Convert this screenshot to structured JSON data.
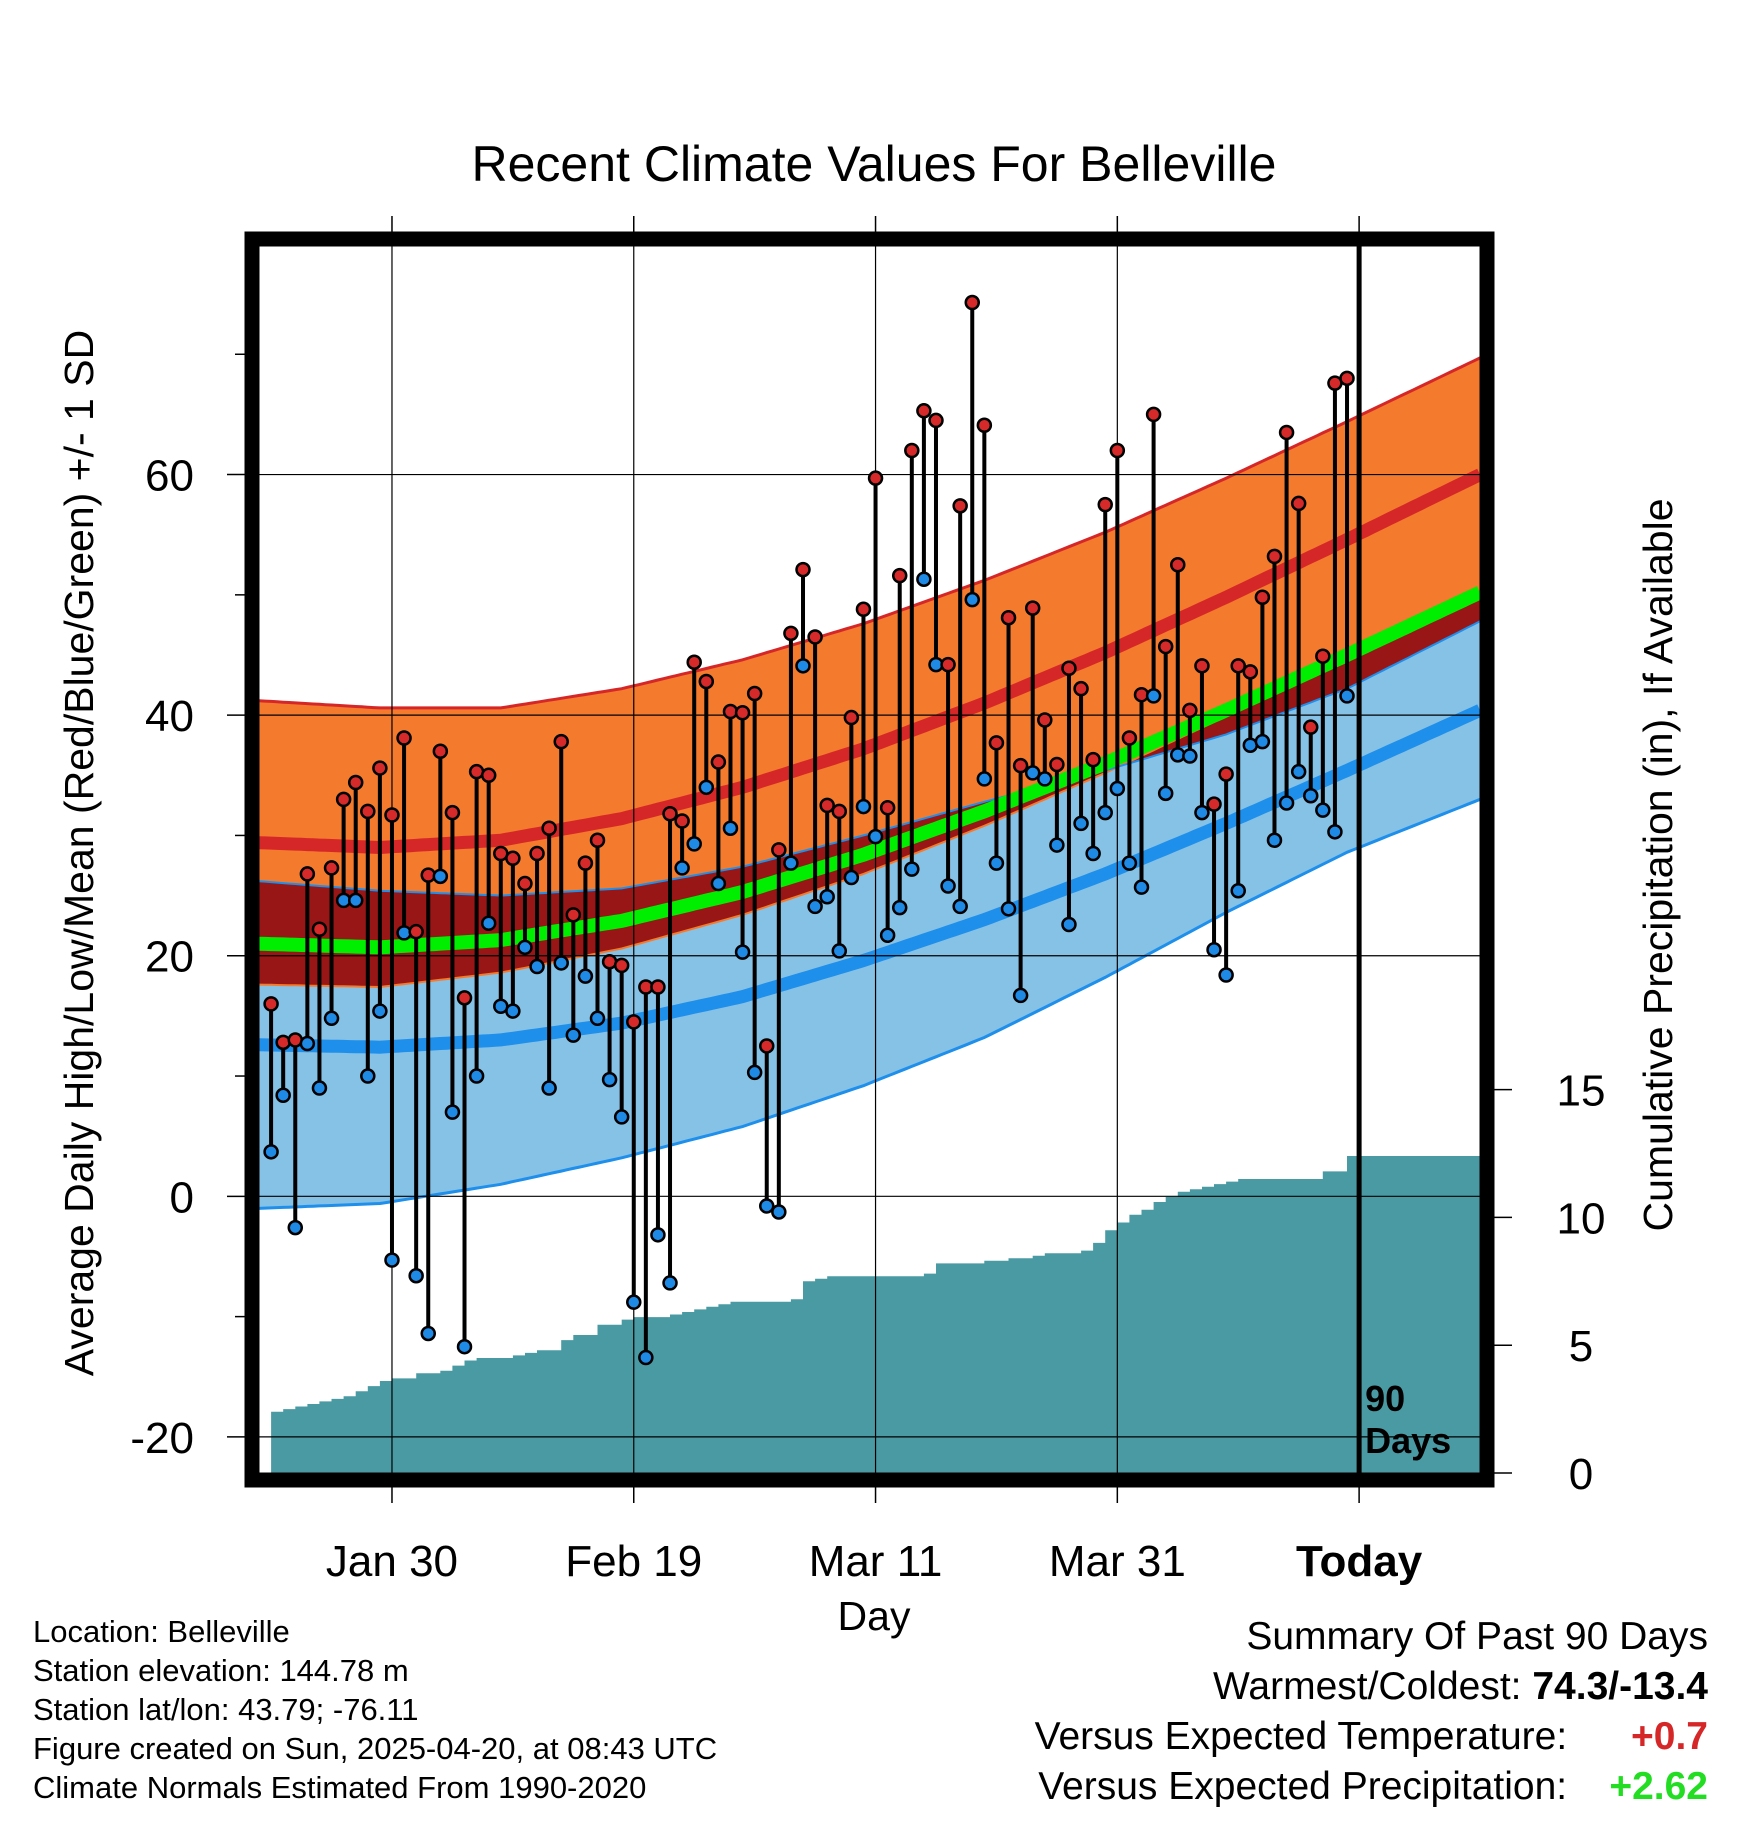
{
  "chart_data": {
    "type": "line",
    "title": "Recent Climate Values For Belleville",
    "xlabel": "Day",
    "ylabel": "Average Daily High/Low/Mean (Red/Blue/Green) +/- 1 SD",
    "y2label": "Cumulative Precipitation (in), If Available",
    "x_tick_labels": [
      "Jan 30",
      "Feb 19",
      "Mar 11",
      "Mar 31",
      "Today"
    ],
    "x_tick_days": [
      11,
      31,
      51,
      71,
      91
    ],
    "x_range_days": [
      0,
      101
    ],
    "ylim": [
      -23,
      79
    ],
    "y_ticks": [
      -20,
      0,
      20,
      40,
      60
    ],
    "y2lim": [
      0,
      48
    ],
    "y2_ticks": [
      0,
      5,
      10,
      15
    ],
    "today_label": "90\nDays",
    "today_label_lines": [
      "90",
      "Days"
    ],
    "colors": {
      "high_band": "#f47a2e",
      "high_mean": "#d62728",
      "overlap_band": "#981616",
      "mean_line": "#00ee00",
      "low_band": "#86c1e6",
      "low_mean": "#1e8fea",
      "precip": "#4a9aa4",
      "high_marker": "#d62a2a",
      "low_marker": "#1e8ae6"
    },
    "normals": {
      "days": [
        0,
        10,
        20,
        30,
        40,
        50,
        60,
        70,
        80,
        90,
        101
      ],
      "high_mean": [
        29.4,
        29.0,
        29.6,
        31.4,
        34.0,
        37.2,
        41.0,
        45.2,
        49.8,
        54.6,
        60.0
      ],
      "high_sd": [
        11.8,
        11.6,
        11.0,
        10.8,
        10.6,
        10.4,
        10.2,
        10.0,
        9.9,
        9.8,
        9.7
      ],
      "low_mean": [
        12.6,
        12.4,
        13.0,
        14.4,
        16.6,
        19.6,
        23.0,
        26.8,
        31.0,
        35.4,
        40.4
      ],
      "low_sd": [
        13.6,
        13.0,
        12.0,
        11.2,
        10.8,
        10.4,
        9.8,
        8.6,
        7.4,
        6.8,
        7.4
      ],
      "mean": [
        21.0,
        20.7,
        21.3,
        22.9,
        25.3,
        28.4,
        32.0,
        36.0,
        40.4,
        45.0,
        50.2
      ]
    },
    "series": [
      {
        "name": "High",
        "days": [
          1,
          2,
          3,
          4,
          5,
          6,
          7,
          8,
          9,
          10,
          11,
          12,
          13,
          14,
          15,
          16,
          17,
          18,
          19,
          20,
          21,
          22,
          23,
          24,
          25,
          26,
          27,
          28,
          29,
          30,
          31,
          32,
          33,
          34,
          35,
          36,
          37,
          38,
          39,
          40,
          41,
          42,
          43,
          44,
          45,
          46,
          47,
          48,
          49,
          50,
          51,
          52,
          53,
          54,
          55,
          56,
          57,
          58,
          59,
          60,
          61,
          62,
          63,
          64,
          65,
          66,
          67,
          68,
          69,
          70,
          71,
          72,
          73,
          74,
          75,
          76,
          77,
          78,
          79,
          80,
          81,
          82,
          83,
          84,
          85,
          86,
          87,
          88,
          89,
          90
        ],
        "values": [
          16.0,
          12.8,
          13.0,
          26.8,
          22.2,
          27.3,
          33.0,
          34.4,
          32.0,
          35.6,
          31.7,
          38.1,
          22.0,
          26.7,
          37.0,
          31.9,
          16.5,
          35.3,
          35.0,
          28.5,
          28.1,
          26.0,
          28.5,
          30.6,
          37.8,
          23.4,
          27.7,
          29.6,
          19.5,
          19.2,
          14.5,
          17.4,
          17.4,
          31.8,
          31.2,
          44.4,
          42.8,
          36.1,
          40.3,
          40.2,
          41.8,
          12.5,
          28.8,
          46.8,
          52.1,
          46.5,
          32.5,
          32.0,
          39.8,
          48.8,
          59.7,
          32.3,
          51.6,
          62.0,
          65.3,
          64.5,
          44.2,
          57.4,
          74.3,
          64.1,
          37.7,
          48.1,
          35.8,
          48.9,
          39.6,
          35.9,
          43.9,
          42.2,
          36.3,
          57.5,
          62.0,
          38.1,
          41.7,
          65.0,
          45.7,
          52.5,
          40.4,
          44.1,
          32.6,
          35.1,
          44.1,
          43.6,
          49.8,
          53.2,
          63.5,
          57.6,
          39.0,
          44.9,
          67.6,
          68.0
        ]
      },
      {
        "name": "Low",
        "days": [
          1,
          2,
          3,
          4,
          5,
          6,
          7,
          8,
          9,
          10,
          11,
          12,
          13,
          14,
          15,
          16,
          17,
          18,
          19,
          20,
          21,
          22,
          23,
          24,
          25,
          26,
          27,
          28,
          29,
          30,
          31,
          32,
          33,
          34,
          35,
          36,
          37,
          38,
          39,
          40,
          41,
          42,
          43,
          44,
          45,
          46,
          47,
          48,
          49,
          50,
          51,
          52,
          53,
          54,
          55,
          56,
          57,
          58,
          59,
          60,
          61,
          62,
          63,
          64,
          65,
          66,
          67,
          68,
          69,
          70,
          71,
          72,
          73,
          74,
          75,
          76,
          77,
          78,
          79,
          80,
          81,
          82,
          83,
          84,
          85,
          86,
          87,
          88,
          89,
          90
        ],
        "values": [
          3.7,
          8.4,
          -2.6,
          12.7,
          9.0,
          14.8,
          24.6,
          24.6,
          10.0,
          15.4,
          -5.3,
          21.9,
          -6.6,
          -11.4,
          26.6,
          7.0,
          -12.5,
          10.0,
          22.7,
          15.8,
          15.4,
          20.7,
          19.1,
          9.0,
          19.4,
          13.4,
          18.3,
          14.8,
          9.7,
          6.6,
          -8.8,
          -13.4,
          -3.2,
          -7.2,
          27.3,
          29.3,
          34.0,
          26.0,
          30.6,
          20.3,
          10.3,
          -0.8,
          -1.3,
          27.7,
          44.1,
          24.1,
          24.9,
          20.4,
          26.5,
          32.4,
          29.9,
          21.7,
          24.0,
          27.2,
          51.3,
          44.2,
          25.8,
          24.1,
          49.6,
          34.7,
          27.7,
          23.9,
          16.7,
          35.2,
          34.7,
          29.2,
          22.6,
          31.0,
          28.5,
          31.9,
          33.9,
          27.7,
          25.7,
          41.6,
          33.5,
          36.7,
          36.6,
          31.9,
          20.5,
          18.4,
          25.4,
          37.5,
          37.8,
          29.6,
          32.7,
          35.3,
          33.3,
          32.1,
          30.3,
          41.6
        ]
      },
      {
        "name": "Cumulative Precipitation",
        "days": [
          0,
          1,
          2,
          3,
          4,
          5,
          6,
          7,
          8,
          9,
          10,
          11,
          12,
          13,
          14,
          15,
          16,
          17,
          18,
          19,
          20,
          21,
          22,
          23,
          24,
          25,
          26,
          27,
          28,
          29,
          30,
          31,
          32,
          33,
          34,
          35,
          36,
          37,
          38,
          39,
          40,
          41,
          42,
          43,
          44,
          45,
          46,
          47,
          48,
          49,
          50,
          51,
          52,
          53,
          54,
          55,
          56,
          57,
          58,
          59,
          60,
          61,
          62,
          63,
          64,
          65,
          66,
          67,
          68,
          69,
          70,
          71,
          72,
          73,
          74,
          75,
          76,
          77,
          78,
          79,
          80,
          81,
          82,
          83,
          84,
          85,
          86,
          87,
          88,
          89,
          90,
          91,
          101
        ],
        "values": [
          0,
          2.4,
          2.5,
          2.6,
          2.7,
          2.8,
          2.9,
          3.0,
          3.2,
          3.4,
          3.6,
          3.7,
          3.7,
          3.9,
          3.9,
          4.0,
          4.2,
          4.4,
          4.5,
          4.5,
          4.5,
          4.6,
          4.7,
          4.8,
          4.8,
          5.2,
          5.4,
          5.4,
          5.8,
          5.8,
          6.0,
          6.1,
          6.1,
          6.1,
          6.2,
          6.3,
          6.4,
          6.5,
          6.6,
          6.7,
          6.7,
          6.7,
          6.7,
          6.7,
          6.8,
          7.5,
          7.6,
          7.7,
          7.7,
          7.7,
          7.7,
          7.7,
          7.7,
          7.7,
          7.7,
          7.8,
          8.2,
          8.2,
          8.2,
          8.2,
          8.3,
          8.3,
          8.4,
          8.4,
          8.5,
          8.6,
          8.6,
          8.6,
          8.7,
          9.0,
          9.5,
          9.8,
          10.1,
          10.3,
          10.6,
          10.8,
          11.0,
          11.1,
          11.2,
          11.3,
          11.4,
          11.5,
          11.5,
          11.5,
          11.5,
          11.5,
          11.5,
          11.5,
          11.8,
          11.8,
          12.4,
          12.4,
          12.4
        ]
      }
    ]
  },
  "footer": {
    "location": "Location: Belleville",
    "elevation": "Station elevation: 144.78 m",
    "latlon": "Station lat/lon: 43.79; -76.11",
    "created": "Figure created on Sun, 2025-04-20, at 08:43 UTC",
    "normals": "Climate Normals Estimated From 1990-2020"
  },
  "summary": {
    "heading": "Summary Of Past 90 Days",
    "warm_cold_label": "Warmest/Coldest:",
    "warm_cold_value": "74.3/-13.4",
    "temp_label": "Versus Expected Temperature:",
    "temp_value": "+0.7",
    "temp_color": "#d62728",
    "precip_label": "Versus Expected Precipitation:",
    "precip_value": "+2.62",
    "precip_color": "#22dd22"
  }
}
